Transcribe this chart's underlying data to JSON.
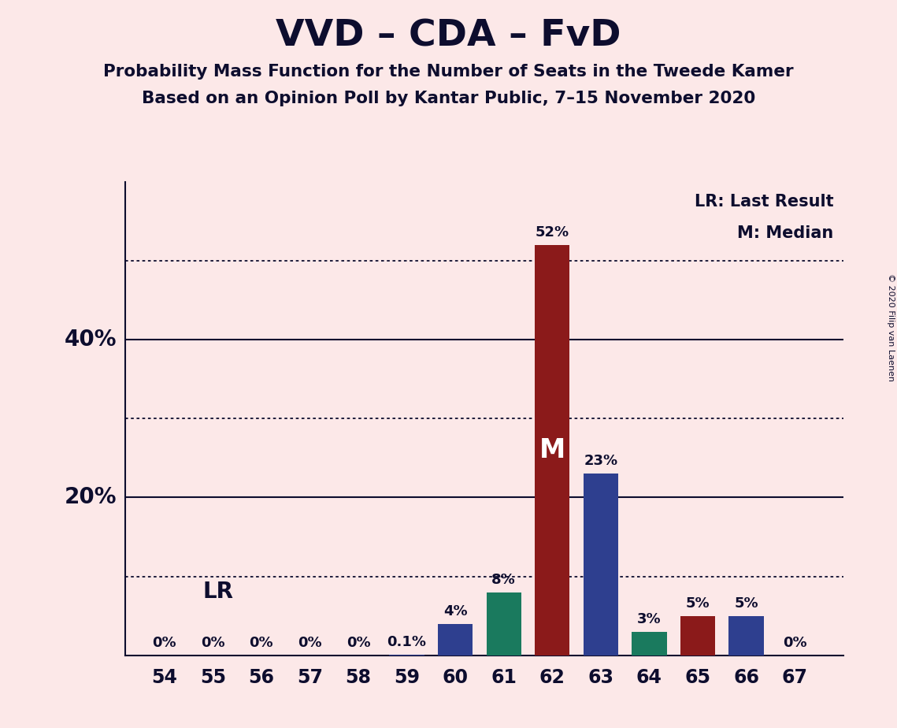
{
  "title": "VVD – CDA – FvD",
  "subtitle1": "Probability Mass Function for the Number of Seats in the Tweede Kamer",
  "subtitle2": "Based on an Opinion Poll by Kantar Public, 7–15 November 2020",
  "copyright": "© 2020 Filip van Laenen",
  "seats": [
    54,
    55,
    56,
    57,
    58,
    59,
    60,
    61,
    62,
    63,
    64,
    65,
    66,
    67
  ],
  "probabilities": [
    0.0,
    0.0,
    0.0,
    0.0,
    0.0,
    0.1,
    4.0,
    8.0,
    52.0,
    23.0,
    3.0,
    5.0,
    5.0,
    0.0
  ],
  "bar_colors": [
    "#2e3f8f",
    "#2e3f8f",
    "#2e3f8f",
    "#2e3f8f",
    "#2e3f8f",
    "#2e3f8f",
    "#2e3f8f",
    "#1a7a5e",
    "#8b1a1a",
    "#2e3f8f",
    "#1a7a5e",
    "#8b1a1a",
    "#2e3f8f",
    "#2e3f8f"
  ],
  "background_color": "#fce8e8",
  "text_color": "#0d0d2e",
  "lr_seat": 62,
  "median_seat": 62,
  "lr_label": "LR",
  "median_label": "M",
  "legend_lr": "LR: Last Result",
  "legend_m": "M: Median",
  "ylim_max": 60,
  "dotted_yticks": [
    10,
    30,
    50
  ],
  "solid_yticks": [
    20,
    40
  ],
  "ylabel_values": [
    20,
    40
  ],
  "ylabel_texts": [
    "20%",
    "40%"
  ]
}
